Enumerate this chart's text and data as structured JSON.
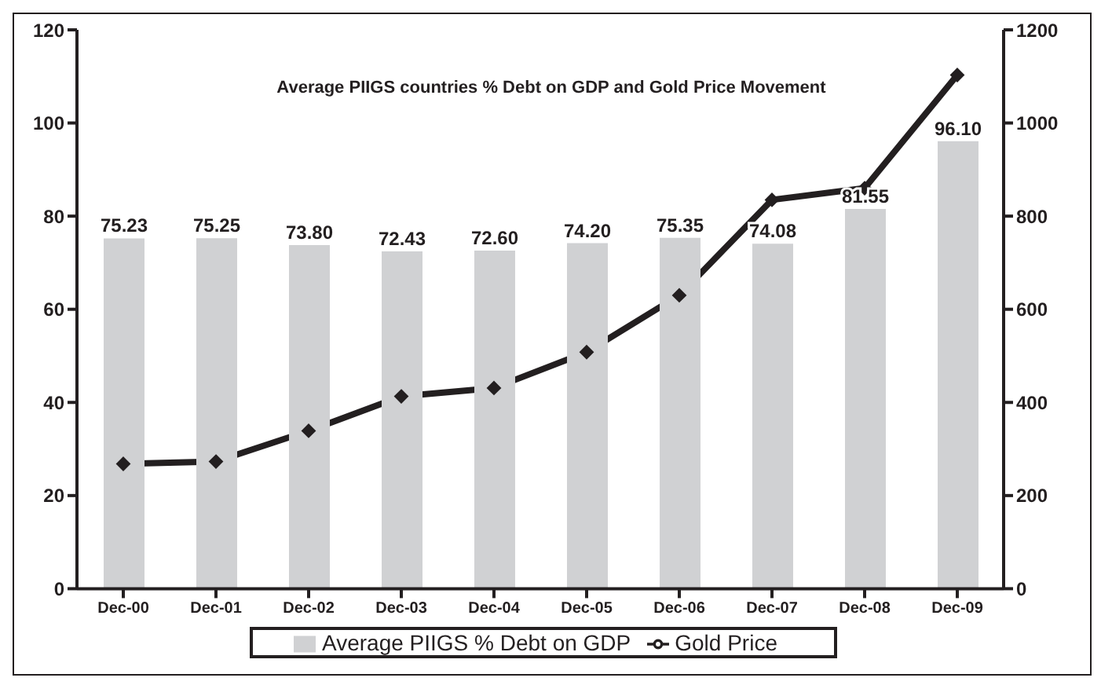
{
  "chart_data": {
    "type": "bar",
    "title": "Average PIIGS countries % Debt on GDP and Gold Price Movement",
    "categories": [
      "Dec-00",
      "Dec-01",
      "Dec-02",
      "Dec-03",
      "Dec-04",
      "Dec-05",
      "Dec-06",
      "Dec-07",
      "Dec-08",
      "Dec-09"
    ],
    "series": [
      {
        "name": "Average PIIGS % Debt on GDP",
        "color": "#d0d1d3",
        "values": [
          75.23,
          75.25,
          73.8,
          72.43,
          72.6,
          74.2,
          75.35,
          74.08,
          81.55,
          96.1
        ],
        "value_labels": [
          "75.23",
          "75.25",
          "73.80",
          "72.43",
          "72.60",
          "74.20",
          "75.35",
          "74.08",
          "81.55",
          "96.10"
        ]
      },
      {
        "name": "Gold Price",
        "type": "line",
        "axis": "y2",
        "color": "#231f20",
        "marker": "diamond",
        "values": [
          268,
          273,
          339,
          413,
          431,
          508,
          630,
          835,
          860,
          1103
        ]
      }
    ],
    "ylim": [
      0,
      120
    ],
    "yticks": [
      0,
      20,
      40,
      60,
      80,
      100,
      120
    ],
    "y2lim": [
      0,
      1200
    ],
    "y2ticks": [
      0,
      200,
      400,
      600,
      800,
      1000,
      1200
    ],
    "grid": false,
    "legend": "bottom"
  }
}
